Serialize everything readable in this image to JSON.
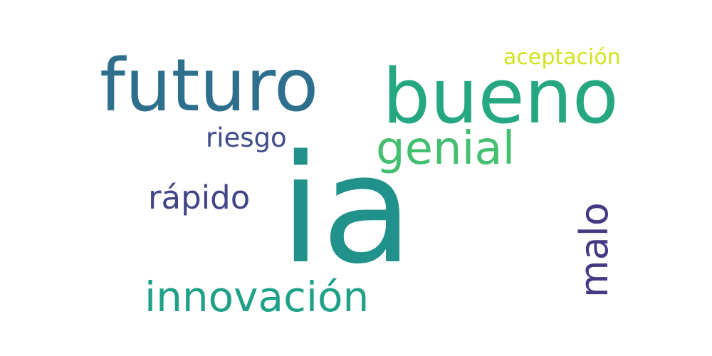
{
  "word_cloud": {
    "background": "#ffffff",
    "words": [
      {
        "key": "futuro",
        "text": "futuro",
        "color": "#2e6f8e",
        "orientation": "horizontal"
      },
      {
        "key": "bueno",
        "text": "bueno",
        "color": "#25a781",
        "orientation": "horizontal"
      },
      {
        "key": "aceptacion",
        "text": "aceptación",
        "color": "#d2e21b",
        "orientation": "horizontal"
      },
      {
        "key": "genial",
        "text": "genial",
        "color": "#44bf70",
        "orientation": "horizontal"
      },
      {
        "key": "riesgo",
        "text": "riesgo",
        "color": "#3e4c8a",
        "orientation": "horizontal"
      },
      {
        "key": "rapido",
        "text": "rápido",
        "color": "#414487",
        "orientation": "horizontal"
      },
      {
        "key": "ia",
        "text": "ia",
        "color": "#21918c",
        "orientation": "horizontal"
      },
      {
        "key": "innovacion",
        "text": "innovación",
        "color": "#1fa088",
        "orientation": "horizontal"
      },
      {
        "key": "malo",
        "text": "malo",
        "color": "#443983",
        "orientation": "vertical"
      }
    ]
  }
}
